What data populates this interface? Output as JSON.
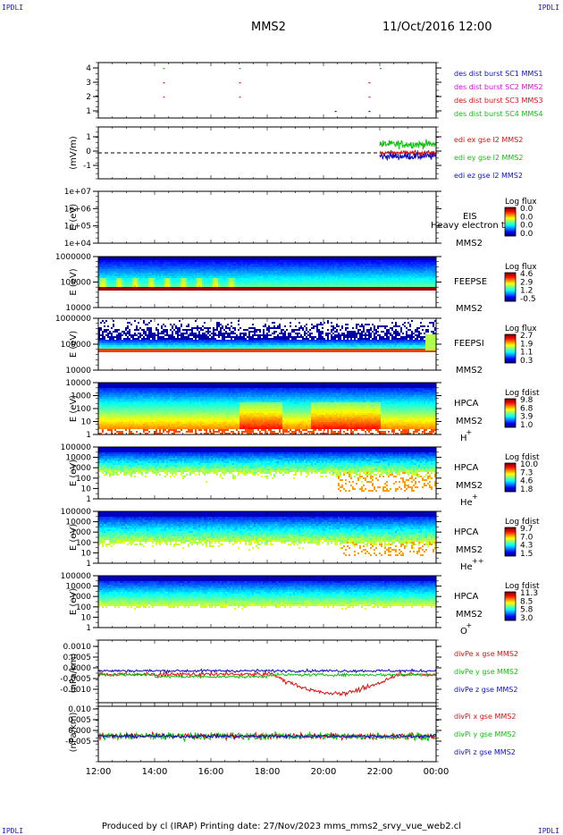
{
  "corner_label": "IPDLI",
  "header": {
    "title": "MMS2",
    "datetime": "11/Oct/2016 12:00"
  },
  "footer": "Produced by cl (IRAP)   Printing date: 27/Nov/2023   mms_mms2_srvy_vue_web2.cl",
  "chart_data": {
    "type": "stacked-timeseries",
    "x_ticks": [
      "12:00",
      "14:00",
      "16:00",
      "18:00",
      "20:00",
      "22:00",
      "00:00"
    ],
    "panels": [
      {
        "id": "burst",
        "type": "timeline",
        "ylabel": "",
        "yticks": [
          "4",
          "3",
          "2",
          "1"
        ],
        "legend": [
          {
            "text": "des dist burst SC1 MMS1",
            "color": "#1010c0"
          },
          {
            "text": "des dist burst SC2 MMS2",
            "color": "#d010d0"
          },
          {
            "text": "des dist burst SC3 MMS3",
            "color": "#e01010"
          },
          {
            "text": "des dist burst SC4 MMS4",
            "color": "#10c010"
          }
        ],
        "bursts_hours": [
          14.3,
          17.0,
          20.4,
          21.6,
          22.0
        ]
      },
      {
        "id": "edi",
        "type": "line",
        "ylabel": "(mV/m)",
        "yticks": [
          "1",
          "0",
          "-1"
        ],
        "ylim": [
          -1.5,
          1.5
        ],
        "legend": [
          {
            "text": "edi ex gse l2 MMS2",
            "color": "#e01010"
          },
          {
            "text": "edi ey gse l2 MMS2",
            "color": "#10c010"
          },
          {
            "text": "edi ez gse l2 MMS2",
            "color": "#1010c0"
          }
        ],
        "data_start_hour": 22.0
      },
      {
        "id": "eis",
        "type": "spectrogram",
        "ylabel": "E (eV)",
        "yticks": [
          "1e+07",
          "1e+06",
          "1e+05",
          "1e+04"
        ],
        "instrument": "EIS",
        "spacecraft": "MMS2",
        "overlay": "Heavy electron to",
        "cb_title": "Log flux",
        "cb_ticks": [
          "0.0",
          "0.0",
          "0.0",
          "0.0"
        ],
        "mode": "empty"
      },
      {
        "id": "feeps_e",
        "type": "spectrogram",
        "ylabel": "E (eV)",
        "yticks": [
          "1000000",
          "100000",
          "10000"
        ],
        "instrument": "FEEPSE",
        "spacecraft": "MMS2",
        "cb_title": "Log flux",
        "cb_ticks": [
          "4.6",
          "2.9",
          "1.2",
          "-0.5"
        ],
        "mode": "feeps_e"
      },
      {
        "id": "feeps_i",
        "type": "spectrogram",
        "ylabel": "E (eV)",
        "yticks": [
          "1000000",
          "100000",
          "10000"
        ],
        "instrument": "FEEPSI",
        "spacecraft": "MMS2",
        "cb_title": "Log flux",
        "cb_ticks": [
          "2.7",
          "1.9",
          "1.1",
          "0.3"
        ],
        "mode": "feeps_i"
      },
      {
        "id": "hpca_h",
        "type": "spectrogram",
        "ylabel": "E (eV)",
        "yticks": [
          "10000",
          "1000",
          "100",
          "10",
          "1"
        ],
        "instrument": "HPCA",
        "spacecraft": "MMS2",
        "species": "H",
        "charge": "+",
        "cb_title": "Log fdist",
        "cb_ticks": [
          "9.8",
          "6.8",
          "3.9",
          "1.0"
        ],
        "mode": "hpca_h"
      },
      {
        "id": "hpca_he1",
        "type": "spectrogram",
        "ylabel": "E (eV)",
        "yticks": [
          "100000",
          "10000",
          "1000",
          "100",
          "10",
          "1"
        ],
        "instrument": "HPCA",
        "spacecraft": "MMS2",
        "species": "He",
        "charge": "+",
        "cb_title": "Log fdist",
        "cb_ticks": [
          "10.0",
          "7.3",
          "4.6",
          "1.8"
        ],
        "mode": "hpca_he1"
      },
      {
        "id": "hpca_he2",
        "type": "spectrogram",
        "ylabel": "E (eV)",
        "yticks": [
          "100000",
          "10000",
          "1000",
          "100",
          "10",
          "1"
        ],
        "instrument": "HPCA",
        "spacecraft": "MMS2",
        "species": "He",
        "charge": "++",
        "cb_title": "Log fdist",
        "cb_ticks": [
          "9.7",
          "7.0",
          "4.3",
          "1.5"
        ],
        "mode": "hpca_he2"
      },
      {
        "id": "hpca_o",
        "type": "spectrogram",
        "ylabel": "E (eV)",
        "yticks": [
          "100000",
          "10000",
          "1000",
          "100",
          "10",
          "1"
        ],
        "instrument": "HPCA",
        "spacecraft": "MMS2",
        "species": "O",
        "charge": "+",
        "cb_title": "Log fdist",
        "cb_ticks": [
          "11.3",
          "8.5",
          "5.8",
          "3.0"
        ],
        "mode": "hpca_o"
      },
      {
        "id": "divpe",
        "type": "line",
        "ylabel": "(nPa/km)",
        "yticks": [
          "0.0010",
          "0.0005",
          "0.0000",
          "-0.0005",
          "-0.0010"
        ],
        "ylim": [
          -0.00145,
          0.00135
        ],
        "legend": [
          {
            "text": "divPe x gse MMS2",
            "color": "#e01010"
          },
          {
            "text": "divPe y gse MMS2",
            "color": "#10c010"
          },
          {
            "text": "divPe z gse MMS2",
            "color": "#1010c0"
          }
        ]
      },
      {
        "id": "divpi",
        "type": "line",
        "ylabel": "(nPa/km)",
        "yticks": [
          "0.010",
          "0.005",
          "0.000",
          "-0.005"
        ],
        "ylim": [
          -0.0095,
          0.0125
        ],
        "legend": [
          {
            "text": "divPi x gse MMS2",
            "color": "#e01010"
          },
          {
            "text": "divPi y gse MMS2",
            "color": "#10c010"
          },
          {
            "text": "divPi z gse MMS2",
            "color": "#1010c0"
          }
        ]
      }
    ]
  }
}
